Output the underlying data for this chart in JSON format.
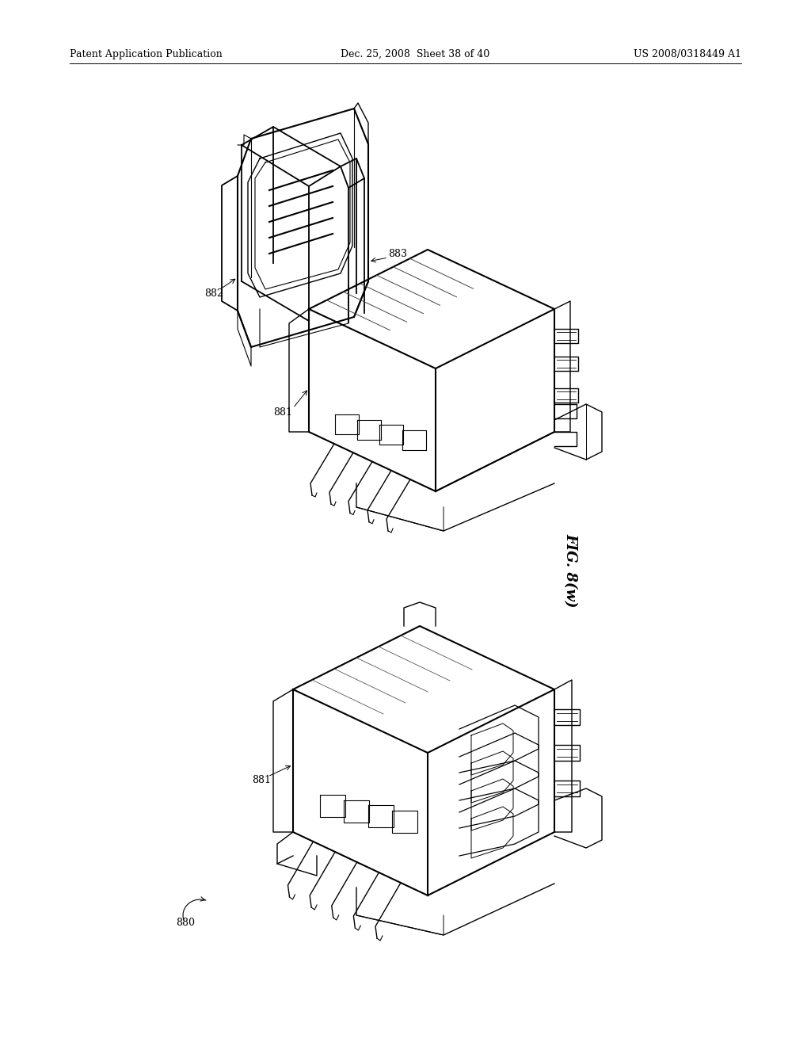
{
  "background_color": "#ffffff",
  "header_left": "Patent Application Publication",
  "header_center": "Dec. 25, 2008  Sheet 38 of 40",
  "header_right": "US 2008/0318449 A1",
  "fig_label": "FIG. 8(w)",
  "label_fontsize": 9,
  "header_fontsize": 9,
  "fig_fontsize": 13,
  "lw": 1.0
}
